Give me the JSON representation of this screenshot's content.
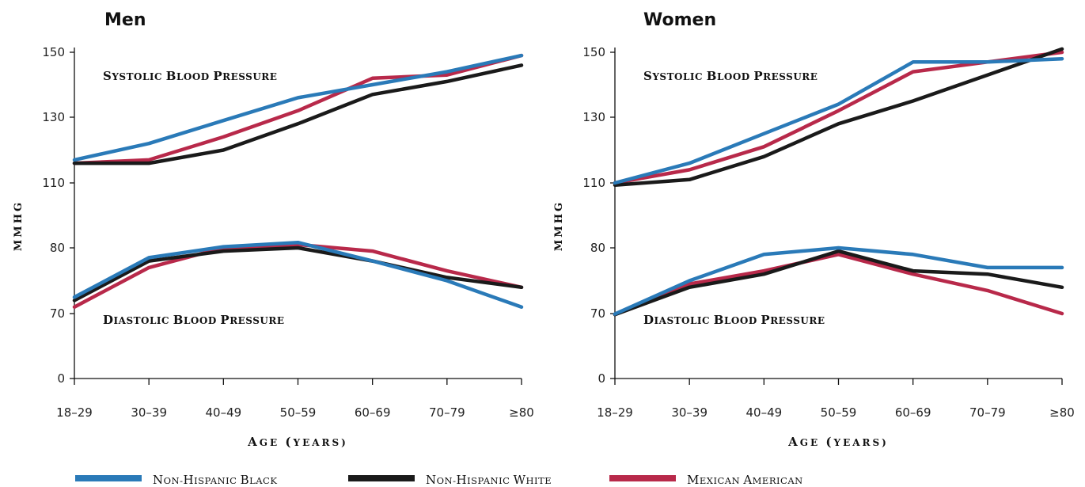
{
  "chart_data": [
    {
      "type": "line",
      "title": "Men",
      "xlabel": "Age (years)",
      "ylabel": "mmHg",
      "categories": [
        "18–29",
        "30–39",
        "40–49",
        "50–59",
        "60–69",
        "70–79",
        "≥80"
      ],
      "y_ticks": [
        "0",
        "70",
        "80",
        "110",
        "130",
        "150"
      ],
      "y_axis_note": "broken scale: 0, 70, 80, 110, 130, 150",
      "annotations": [
        "Systolic Blood Pressure",
        "Diastolic Blood Pressure"
      ],
      "systolic_series": [
        {
          "name": "Non-Hispanic black",
          "values": [
            117,
            122,
            129,
            136,
            140,
            144,
            149
          ]
        },
        {
          "name": "Non-Hispanic white",
          "values": [
            116,
            116,
            120,
            128,
            137,
            141,
            146
          ]
        },
        {
          "name": "Mexican American",
          "values": [
            116,
            117,
            124,
            132,
            142,
            143,
            149
          ]
        }
      ],
      "diastolic_series": [
        {
          "name": "Non-Hispanic black",
          "values": [
            72.5,
            78.5,
            80.5,
            82.5,
            78,
            75,
            71
          ]
        },
        {
          "name": "Non-Hispanic white",
          "values": [
            72,
            78,
            79.5,
            80,
            78,
            75.5,
            74
          ]
        },
        {
          "name": "Mexican American",
          "values": [
            71,
            77,
            80,
            81.5,
            79.5,
            76.5,
            74
          ]
        }
      ]
    },
    {
      "type": "line",
      "title": "Women",
      "xlabel": "Age (years)",
      "ylabel": "mmHg",
      "categories": [
        "18–29",
        "30–39",
        "40–49",
        "50–59",
        "60–69",
        "70–79",
        "≥80"
      ],
      "y_ticks": [
        "0",
        "70",
        "80",
        "110",
        "130",
        "150"
      ],
      "y_axis_note": "broken scale: 0, 70, 80, 110, 130, 150",
      "annotations": [
        "Systolic Blood Pressure",
        "Diastolic Blood Pressure"
      ],
      "systolic_series": [
        {
          "name": "Non-Hispanic black",
          "values": [
            110,
            116,
            125,
            134,
            147,
            147,
            148
          ]
        },
        {
          "name": "Non-Hispanic white",
          "values": [
            109,
            111,
            118,
            128,
            135,
            143,
            151
          ]
        },
        {
          "name": "Mexican American",
          "values": [
            110,
            114,
            121,
            132,
            144,
            147,
            150
          ]
        }
      ],
      "diastolic_series": [
        {
          "name": "Non-Hispanic black",
          "values": [
            69.5,
            75,
            79,
            80,
            79,
            77,
            77
          ]
        },
        {
          "name": "Non-Hispanic white",
          "values": [
            69,
            74,
            76,
            79.5,
            76.5,
            76,
            74
          ]
        },
        {
          "name": "Mexican American",
          "values": [
            69,
            74.5,
            76.5,
            79,
            76,
            73.5,
            70
          ]
        }
      ]
    }
  ],
  "legend": [
    {
      "name": "Non-Hispanic black",
      "color": "#1f77b4"
    },
    {
      "name": "Non-Hispanic white",
      "color": "#1a1a1a"
    },
    {
      "name": "Mexican American",
      "color": "#b8294a"
    }
  ],
  "colors": {
    "Non-Hispanic black": "#2a7ab8",
    "Non-Hispanic white": "#1a1a1a",
    "Mexican American": "#b8294a"
  }
}
